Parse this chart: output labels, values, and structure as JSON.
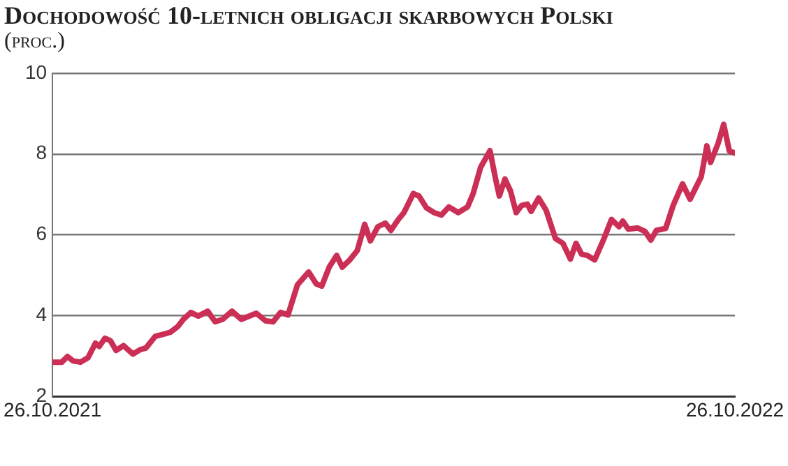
{
  "chart_data": {
    "type": "line",
    "title": "Dochodowość 10-letnich obligacji skarbowych Polski",
    "subtitle": "(proc.)",
    "x": [
      "2021-10-26",
      "2021-10-31",
      "2021-11-03",
      "2021-11-06",
      "2021-11-10",
      "2021-11-14",
      "2021-11-18",
      "2021-11-20",
      "2021-11-23",
      "2021-11-26",
      "2021-11-29",
      "2021-12-03",
      "2021-12-08",
      "2021-12-12",
      "2021-12-15",
      "2021-12-20",
      "2021-12-25",
      "2021-12-28",
      "2022-01-01",
      "2022-01-04",
      "2022-01-08",
      "2022-01-12",
      "2022-01-17",
      "2022-01-21",
      "2022-01-25",
      "2022-01-30",
      "2022-02-04",
      "2022-02-12",
      "2022-02-17",
      "2022-02-21",
      "2022-02-25",
      "2022-03-01",
      "2022-03-03",
      "2022-03-06",
      "2022-03-12",
      "2022-03-16",
      "2022-03-19",
      "2022-03-23",
      "2022-03-27",
      "2022-03-30",
      "2022-04-03",
      "2022-04-07",
      "2022-04-11",
      "2022-04-14",
      "2022-04-18",
      "2022-04-22",
      "2022-04-25",
      "2022-04-29",
      "2022-05-02",
      "2022-05-07",
      "2022-05-10",
      "2022-05-14",
      "2022-05-18",
      "2022-05-22",
      "2022-05-26",
      "2022-05-31",
      "2022-06-05",
      "2022-06-08",
      "2022-06-12",
      "2022-06-17",
      "2022-06-20",
      "2022-06-22",
      "2022-06-25",
      "2022-06-28",
      "2022-07-01",
      "2022-07-04",
      "2022-07-07",
      "2022-07-09",
      "2022-07-13",
      "2022-07-17",
      "2022-07-22",
      "2022-07-26",
      "2022-07-30",
      "2022-08-02",
      "2022-08-05",
      "2022-08-08",
      "2022-08-12",
      "2022-08-17",
      "2022-08-21",
      "2022-08-25",
      "2022-08-27",
      "2022-08-30",
      "2022-09-04",
      "2022-09-08",
      "2022-09-11",
      "2022-09-14",
      "2022-09-19",
      "2022-09-23",
      "2022-09-28",
      "2022-10-02",
      "2022-10-08",
      "2022-10-11",
      "2022-10-13",
      "2022-10-17",
      "2022-10-20",
      "2022-10-23",
      "2022-10-26"
    ],
    "series": [
      {
        "color": "#cc2f55",
        "values": [
          2.85,
          2.85,
          2.99,
          2.88,
          2.85,
          2.96,
          3.32,
          3.24,
          3.44,
          3.38,
          3.14,
          3.26,
          3.05,
          3.16,
          3.2,
          3.49,
          3.55,
          3.59,
          3.73,
          3.91,
          4.08,
          3.99,
          4.11,
          3.85,
          3.91,
          4.11,
          3.91,
          4.06,
          3.87,
          3.85,
          4.08,
          4.02,
          4.32,
          4.76,
          5.08,
          4.79,
          4.73,
          5.2,
          5.49,
          5.2,
          5.38,
          5.61,
          6.26,
          5.85,
          6.2,
          6.29,
          6.11,
          6.38,
          6.55,
          7.02,
          6.96,
          6.67,
          6.55,
          6.49,
          6.69,
          6.55,
          6.69,
          7.02,
          7.67,
          8.08,
          7.38,
          6.96,
          7.38,
          7.08,
          6.55,
          6.73,
          6.76,
          6.58,
          6.91,
          6.61,
          5.91,
          5.79,
          5.4,
          5.79,
          5.52,
          5.49,
          5.38,
          5.91,
          6.38,
          6.2,
          6.34,
          6.14,
          6.17,
          6.08,
          5.87,
          6.11,
          6.16,
          6.73,
          7.26,
          6.88,
          7.44,
          8.2,
          7.79,
          8.26,
          8.73,
          8.08,
          8.02
        ]
      }
    ],
    "xlim": [
      "2021-10-26",
      "2022-10-26"
    ],
    "xticks": [
      {
        "value": "2021-10-26",
        "label": "26.10.2021"
      },
      {
        "value": "2022-10-26",
        "label": "26.10.2022"
      }
    ],
    "ylim": [
      2,
      10
    ],
    "yticks": [
      2,
      4,
      6,
      8,
      10
    ],
    "grid": "y",
    "line_style": "solid",
    "marker": "none",
    "legend": false
  }
}
